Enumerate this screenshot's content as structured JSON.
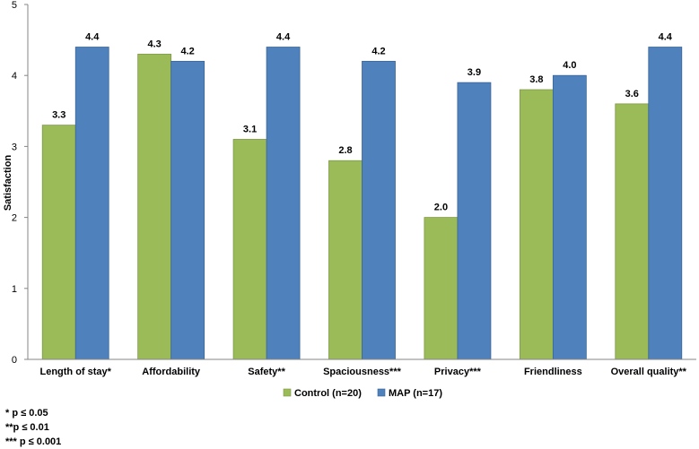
{
  "chart_data": {
    "type": "bar",
    "ylabel": "Satisfaction",
    "xlabel": "",
    "ylim": [
      0,
      5
    ],
    "yticks": [
      0,
      1,
      2,
      3,
      4,
      5
    ],
    "grid": false,
    "legend_position": "bottom",
    "categories": [
      "Length of stay*",
      "Affordability",
      "Safety**",
      "Spaciousness***",
      "Privacy***",
      "Friendliness",
      "Overall quality**"
    ],
    "series": [
      {
        "name": "Control (n=20)",
        "color": "#9BBB59",
        "stroke": "#7E9945",
        "values": [
          3.3,
          4.3,
          3.1,
          2.8,
          2.0,
          3.8,
          3.6
        ],
        "labels": [
          "3.3",
          "4.3",
          "3.1",
          "2.8",
          "2.0",
          "3.8",
          "3.6"
        ]
      },
      {
        "name": "MAP (n=17)",
        "color": "#4F81BD",
        "stroke": "#3A6595",
        "values": [
          4.4,
          4.2,
          4.4,
          4.2,
          3.9,
          4.0,
          4.4
        ],
        "labels": [
          "4.4",
          "4.2",
          "4.4",
          "4.2",
          "3.9",
          "4.0",
          "4.4"
        ]
      }
    ]
  },
  "footnotes": [
    "* p ≤ 0.05",
    "**p ≤ 0.01",
    "*** p ≤ 0.001"
  ]
}
